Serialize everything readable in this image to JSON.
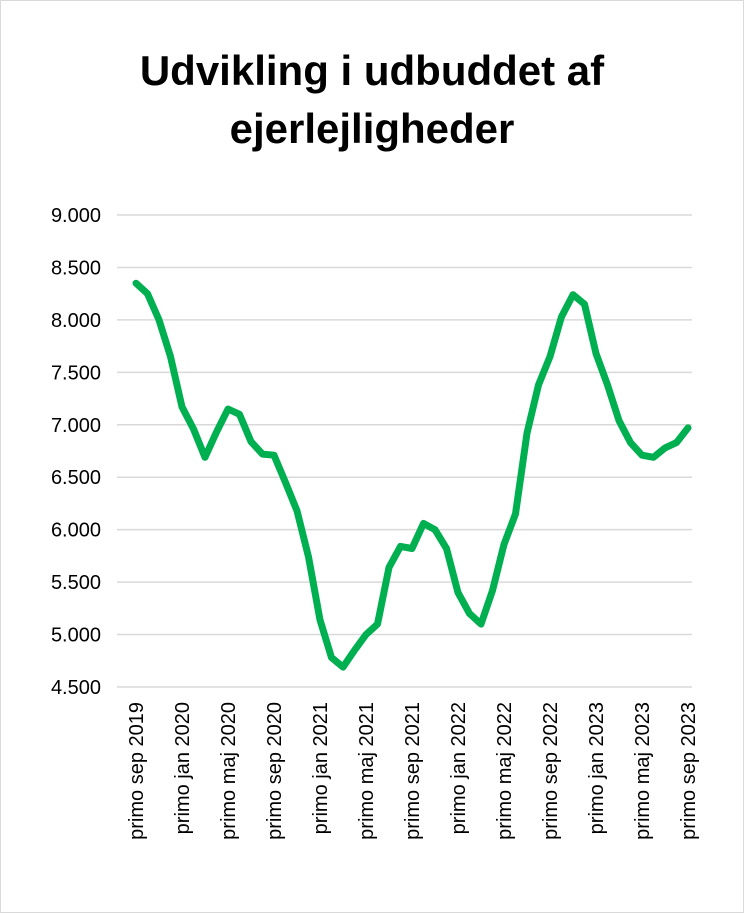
{
  "chart_data": {
    "type": "line",
    "title_lines": [
      "Udvikling i udbuddet af",
      "ejerlejligheder"
    ],
    "yticks": [
      "9.000",
      "8.500",
      "8.000",
      "7.500",
      "7.000",
      "6.500",
      "6.000",
      "5.500",
      "5.000",
      "4.500"
    ],
    "ylim": [
      4500,
      9000
    ],
    "grid": true,
    "xticks": [
      "primo sep 2019",
      "primo jan 2020",
      "primo maj 2020",
      "primo sep 2020",
      "primo jan 2021",
      "primo maj 2021",
      "primo sep 2021",
      "primo jan 2022",
      "primo maj 2022",
      "primo sep 2022",
      "primo jan 2023",
      "primo maj 2023",
      "primo sep 2023"
    ],
    "series": [
      {
        "color": "#00b050",
        "values": [
          8350,
          8250,
          8000,
          7650,
          7170,
          6960,
          6690,
          6930,
          7150,
          7100,
          6840,
          6720,
          6710,
          6450,
          6180,
          5740,
          5140,
          4780,
          4690,
          4850,
          5000,
          5100,
          5640,
          5840,
          5820,
          6060,
          6000,
          5820,
          5400,
          5200,
          5100,
          5420,
          5860,
          6150,
          6920,
          7380,
          7650,
          8030,
          8240,
          8150,
          7680,
          7380,
          7040,
          6830,
          6710,
          6690,
          6780,
          6830,
          6970
        ]
      }
    ]
  }
}
